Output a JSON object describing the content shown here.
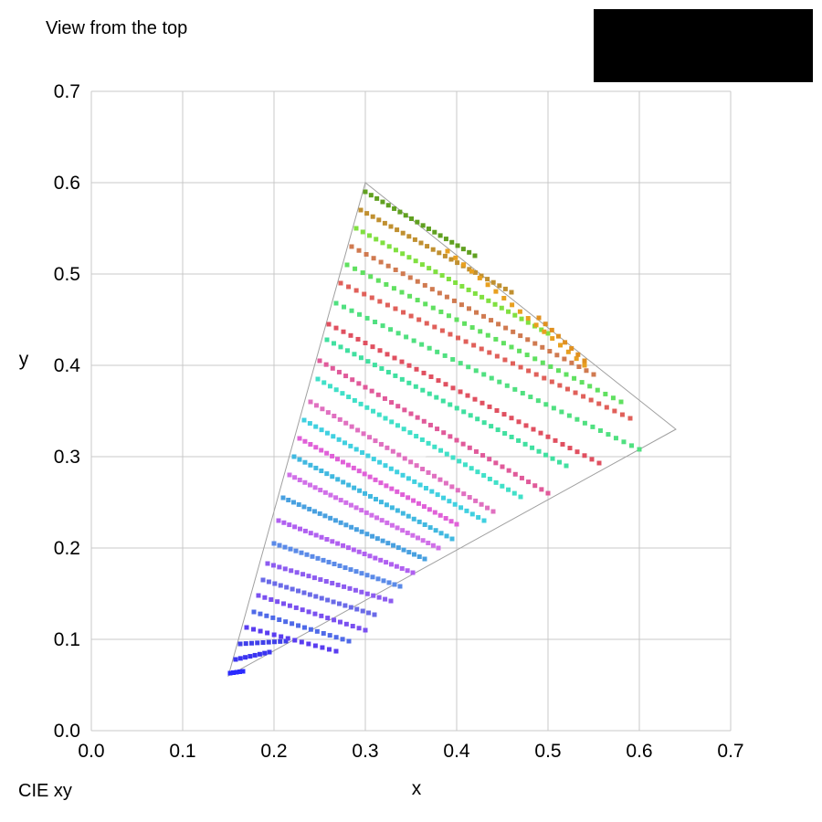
{
  "header": {
    "caption": "View from the top"
  },
  "footer": {
    "caption": "CIE xy"
  },
  "chart_data": {
    "type": "scatter",
    "title": "",
    "xlabel": "x",
    "ylabel": "y",
    "xlim": [
      0,
      0.7
    ],
    "ylim": [
      0,
      0.7
    ],
    "x_ticks": [
      "0.0",
      "0.1",
      "0.2",
      "0.3",
      "0.4",
      "0.5",
      "0.6",
      "0.7"
    ],
    "y_ticks": [
      "0.0",
      "0.1",
      "0.2",
      "0.3",
      "0.4",
      "0.5",
      "0.6",
      "0.7"
    ],
    "grid": true,
    "gamut_triangle": [
      [
        0.64,
        0.33
      ],
      [
        0.3,
        0.6
      ],
      [
        0.15,
        0.06
      ]
    ],
    "series": [
      {
        "color": "#2a2aff",
        "from": [
          0.152,
          0.063
        ],
        "to": [
          0.166,
          0.065
        ],
        "n": 5
      },
      {
        "color": "#3b34f0",
        "from": [
          0.158,
          0.078
        ],
        "to": [
          0.195,
          0.086
        ],
        "n": 8
      },
      {
        "color": "#4040ea",
        "from": [
          0.163,
          0.095
        ],
        "to": [
          0.213,
          0.098
        ],
        "n": 9
      },
      {
        "color": "#5a3df0",
        "from": [
          0.17,
          0.113
        ],
        "to": [
          0.268,
          0.087
        ],
        "n": 14
      },
      {
        "color": "#4f6ae8",
        "from": [
          0.178,
          0.13
        ],
        "to": [
          0.282,
          0.098
        ],
        "n": 16
      },
      {
        "color": "#7a50f0",
        "from": [
          0.183,
          0.148
        ],
        "to": [
          0.3,
          0.11
        ],
        "n": 18
      },
      {
        "color": "#6a6ae8",
        "from": [
          0.188,
          0.165
        ],
        "to": [
          0.31,
          0.127
        ],
        "n": 20
      },
      {
        "color": "#8d5cf0",
        "from": [
          0.193,
          0.183
        ],
        "to": [
          0.328,
          0.142
        ],
        "n": 22
      },
      {
        "color": "#5a8ae8",
        "from": [
          0.2,
          0.205
        ],
        "to": [
          0.338,
          0.158
        ],
        "n": 24
      },
      {
        "color": "#b060f0",
        "from": [
          0.205,
          0.23
        ],
        "to": [
          0.352,
          0.173
        ],
        "n": 26
      },
      {
        "color": "#48a0e0",
        "from": [
          0.21,
          0.255
        ],
        "to": [
          0.365,
          0.188
        ],
        "n": 28
      },
      {
        "color": "#d070e8",
        "from": [
          0.217,
          0.28
        ],
        "to": [
          0.38,
          0.2
        ],
        "n": 30
      },
      {
        "color": "#40b8e0",
        "from": [
          0.222,
          0.3
        ],
        "to": [
          0.395,
          0.21
        ],
        "n": 30
      },
      {
        "color": "#e060d8",
        "from": [
          0.228,
          0.32
        ],
        "to": [
          0.4,
          0.226
        ],
        "n": 30
      },
      {
        "color": "#40d0e0",
        "from": [
          0.233,
          0.34
        ],
        "to": [
          0.43,
          0.23
        ],
        "n": 32
      },
      {
        "color": "#e070c0",
        "from": [
          0.24,
          0.36
        ],
        "to": [
          0.44,
          0.24
        ],
        "n": 32
      },
      {
        "color": "#40e0c8",
        "from": [
          0.248,
          0.385
        ],
        "to": [
          0.47,
          0.256
        ],
        "n": 34
      },
      {
        "color": "#e05a9a",
        "from": [
          0.25,
          0.405
        ],
        "to": [
          0.5,
          0.26
        ],
        "n": 36
      },
      {
        "color": "#40e0a0",
        "from": [
          0.258,
          0.428
        ],
        "to": [
          0.52,
          0.29
        ],
        "n": 36
      },
      {
        "color": "#e05060",
        "from": [
          0.26,
          0.445
        ],
        "to": [
          0.556,
          0.293
        ],
        "n": 38
      },
      {
        "color": "#50e080",
        "from": [
          0.268,
          0.468
        ],
        "to": [
          0.6,
          0.308
        ],
        "n": 40
      },
      {
        "color": "#e0605a",
        "from": [
          0.273,
          0.49
        ],
        "to": [
          0.59,
          0.342
        ],
        "n": 38
      },
      {
        "color": "#60e060",
        "from": [
          0.28,
          0.51
        ],
        "to": [
          0.58,
          0.36
        ],
        "n": 36
      },
      {
        "color": "#d07a50",
        "from": [
          0.285,
          0.53
        ],
        "to": [
          0.55,
          0.39
        ],
        "n": 34
      },
      {
        "color": "#80e040",
        "from": [
          0.29,
          0.55
        ],
        "to": [
          0.5,
          0.435
        ],
        "n": 30
      },
      {
        "color": "#c09030",
        "from": [
          0.295,
          0.57
        ],
        "to": [
          0.46,
          0.48
        ],
        "n": 26
      },
      {
        "color": "#60a020",
        "from": [
          0.3,
          0.59
        ],
        "to": [
          0.42,
          0.52
        ],
        "n": 20
      },
      {
        "color": "#e8a020",
        "from": [
          0.39,
          0.525
        ],
        "to": [
          0.54,
          0.4
        ],
        "n": 18
      },
      {
        "color": "#e09020",
        "from": [
          0.49,
          0.452
        ],
        "to": [
          0.54,
          0.405
        ],
        "n": 8
      }
    ]
  }
}
